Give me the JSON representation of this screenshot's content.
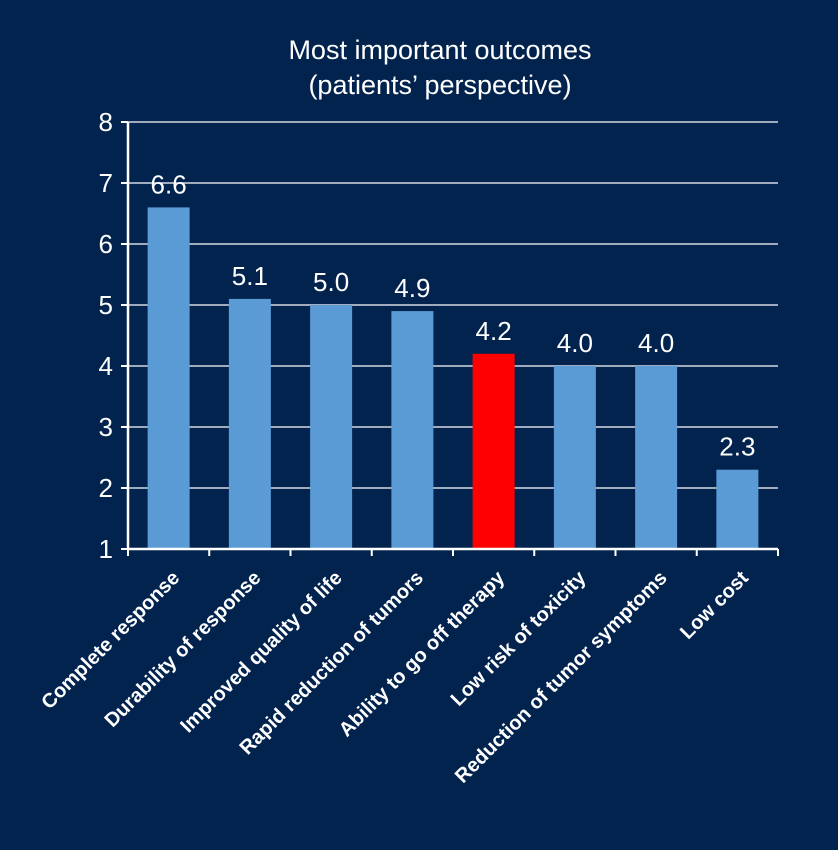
{
  "chart_data": {
    "type": "bar",
    "title": [
      "Most important outcomes",
      "(patients’ perspective)"
    ],
    "categories": [
      "Complete response",
      "Durability of response",
      "Improved quality of life",
      "Rapid reduction of tumors",
      "Ability to go off therapy",
      "Low risk of toxicity",
      "Reduction of tumor symptoms",
      "Low cost"
    ],
    "values": [
      6.6,
      5.1,
      5.0,
      4.9,
      4.2,
      4.0,
      4.0,
      2.3
    ],
    "value_labels": [
      "6.6",
      "5.1",
      "5.0",
      "4.9",
      "4.2",
      "4.0",
      "4.0",
      "2.3"
    ],
    "highlight_index": 4,
    "ylim": [
      1,
      8
    ],
    "yticks": [
      "1",
      "2",
      "3",
      "4",
      "5",
      "6",
      "7",
      "8"
    ],
    "xlabel": "",
    "ylabel": "",
    "grid": true,
    "legend": "none",
    "colors": {
      "background": "#03234f",
      "bar": "#5b9bd5",
      "highlight": "#ff0000",
      "grid": "#ffffff",
      "text": "#ffffff"
    }
  }
}
